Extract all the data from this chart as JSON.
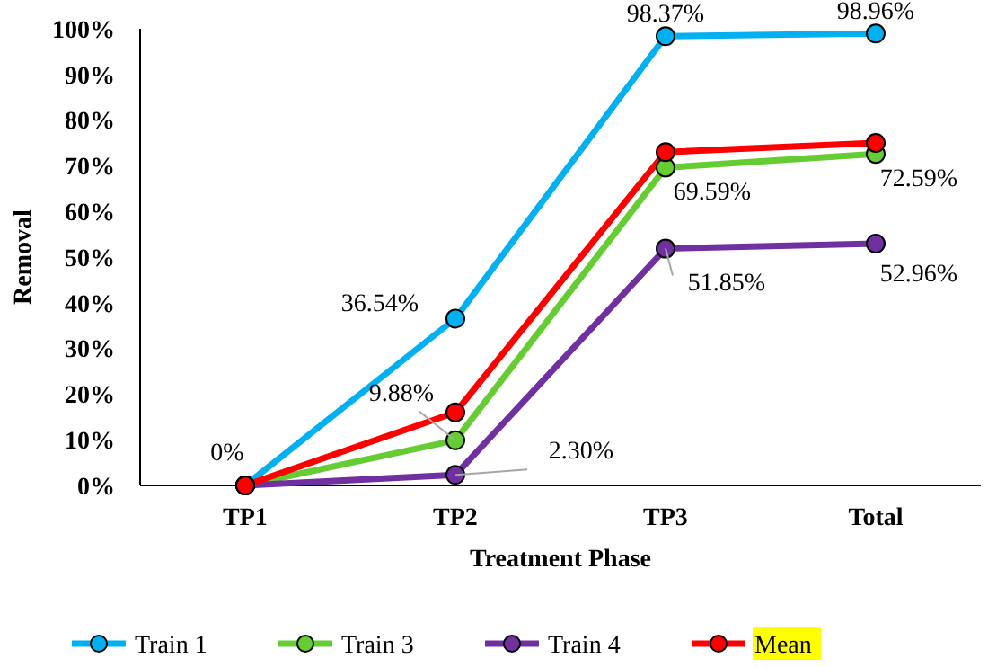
{
  "chart_data": {
    "type": "line",
    "xlabel": "Treatment Phase",
    "ylabel": "Removal",
    "categories": [
      "TP1",
      "TP2",
      "TP3",
      "Total"
    ],
    "ylim": [
      0,
      100
    ],
    "yticks": [
      {
        "value": 0,
        "label": "0%"
      },
      {
        "value": 10,
        "label": "10%"
      },
      {
        "value": 20,
        "label": "20%"
      },
      {
        "value": 30,
        "label": "30%"
      },
      {
        "value": 40,
        "label": "40%"
      },
      {
        "value": 50,
        "label": "50%"
      },
      {
        "value": 60,
        "label": "60%"
      },
      {
        "value": 70,
        "label": "70%"
      },
      {
        "value": 80,
        "label": "80%"
      },
      {
        "value": 90,
        "label": "90%"
      },
      {
        "value": 100,
        "label": "100%"
      }
    ],
    "grid": false,
    "legend": "bottom",
    "marker": "circle",
    "line_style": "solid",
    "series": [
      {
        "name": "Train 1",
        "color": "#00b0f0",
        "values": [
          0,
          36.54,
          98.37,
          98.96
        ],
        "value_labels": [
          "0%",
          "36.54%",
          "98.37%",
          "98.96%"
        ]
      },
      {
        "name": "Train 3",
        "color": "#66cc33",
        "values": [
          0,
          9.88,
          69.59,
          72.59
        ],
        "value_labels": [
          null,
          "9.88%",
          "69.59%",
          "72.59%"
        ]
      },
      {
        "name": "Train 4",
        "color": "#7030a0",
        "values": [
          0,
          2.3,
          51.85,
          52.96
        ],
        "value_labels": [
          null,
          "2.30%",
          "51.85%",
          "52.96%"
        ]
      },
      {
        "name": "Mean",
        "color": "#ff0000",
        "values": [
          0,
          16,
          73,
          75
        ]
      }
    ]
  }
}
